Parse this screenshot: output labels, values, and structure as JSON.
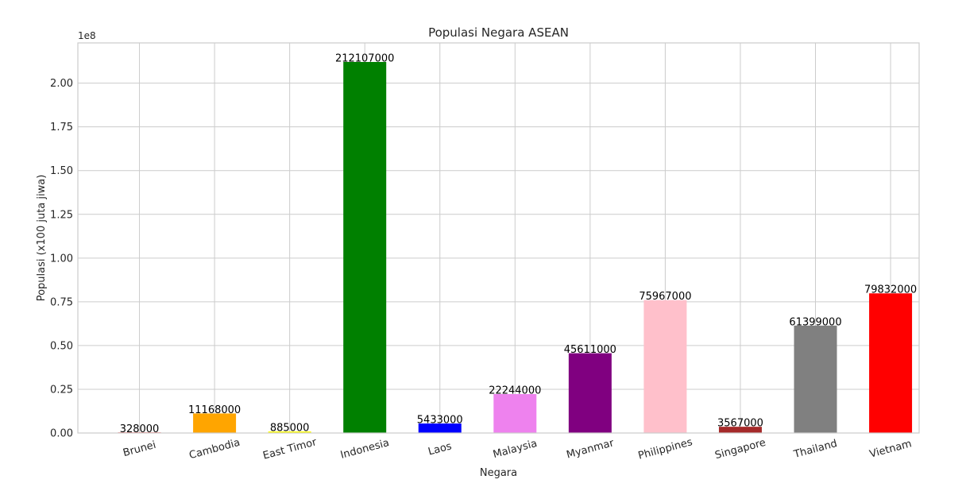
{
  "chart_data": {
    "type": "bar",
    "title": "Populasi Negara ASEAN",
    "xlabel": "Negara",
    "ylabel": "Populasi (x100 juta jiwa)",
    "y_offset_text": "1e8",
    "ylim": [
      0,
      223000000
    ],
    "yticks": [
      0,
      25000000,
      50000000,
      75000000,
      100000000,
      125000000,
      150000000,
      175000000,
      200000000
    ],
    "ytick_labels": [
      "0.00",
      "0.25",
      "0.50",
      "0.75",
      "1.00",
      "1.25",
      "1.50",
      "1.75",
      "2.00"
    ],
    "categories": [
      "Brunei",
      "Cambodia",
      "East Timor",
      "Indonesia",
      "Laos",
      "Malaysia",
      "Myanmar",
      "Philippines",
      "Singapore",
      "Thailand",
      "Vietnam"
    ],
    "values": [
      328000,
      11168000,
      885000,
      212107000,
      5433000,
      22244000,
      45611000,
      75967000,
      3567000,
      61399000,
      79832000
    ],
    "value_labels": [
      "328000",
      "11168000",
      "885000",
      "212107000",
      "5433000",
      "22244000",
      "45611000",
      "75967000",
      "3567000",
      "61399000",
      "79832000"
    ],
    "colors": [
      "#ff0000",
      "#ffa500",
      "#ffff00",
      "#008000",
      "#0000ff",
      "#ee82ee",
      "#800080",
      "#ffc0cb",
      "#a52a2a",
      "#808080",
      "#ff0000"
    ],
    "grid": true,
    "style": "seaborn-whitegrid"
  }
}
